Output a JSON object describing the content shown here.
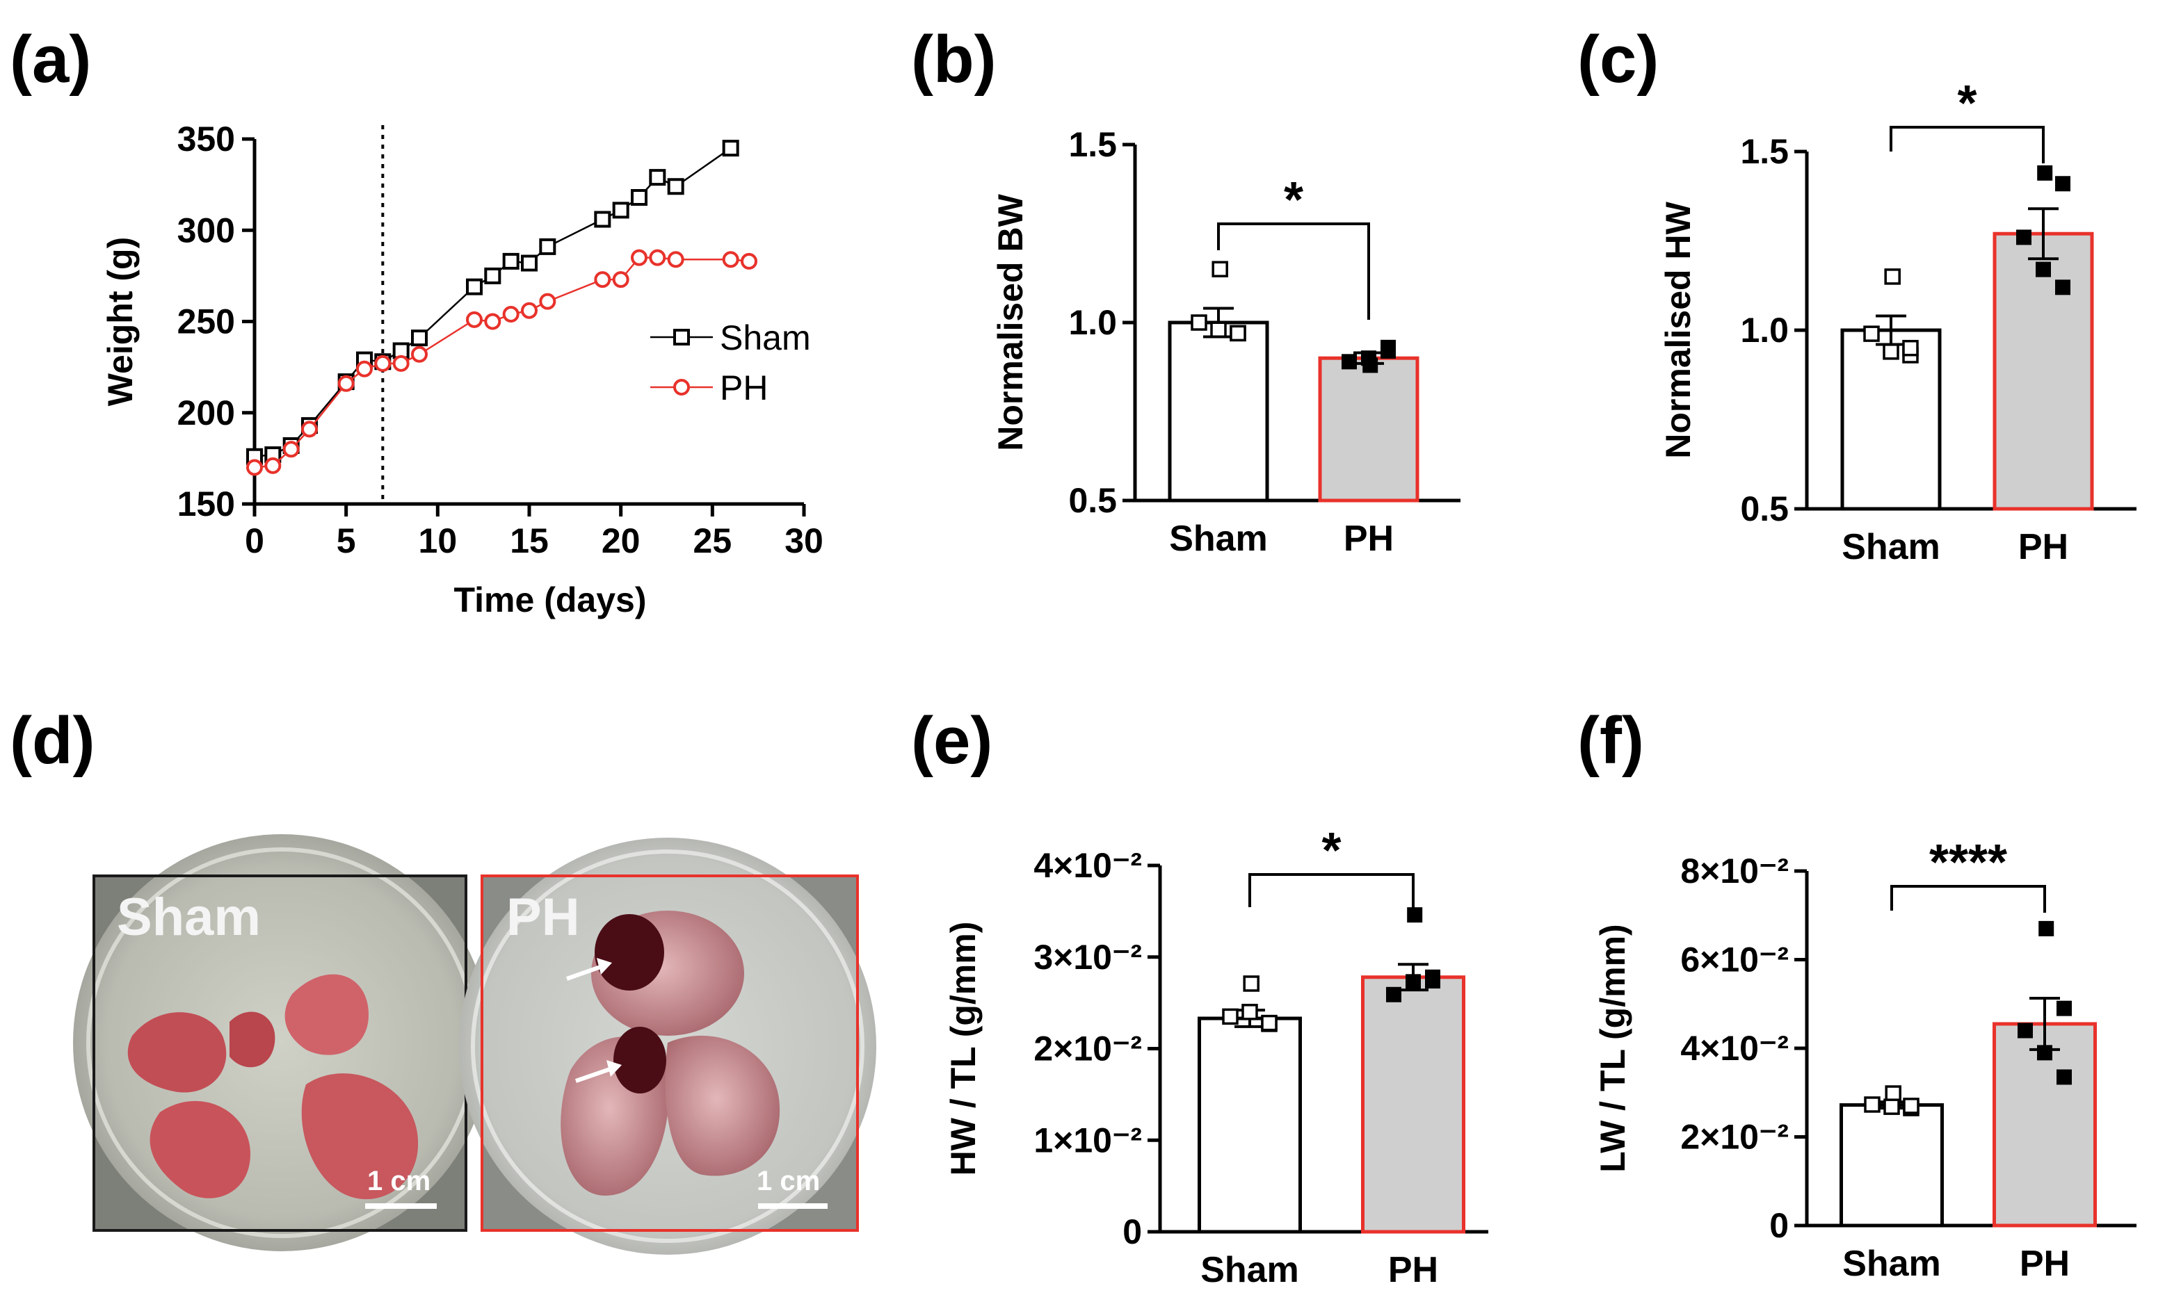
{
  "colors": {
    "sham": "#000000",
    "ph": "#e8322b",
    "bar_fill_ph": "#cfcfcf",
    "bar_fill_sham": "#ffffff"
  },
  "panel_labels": [
    "(a)",
    "(b)",
    "(c)",
    "(d)",
    "(e)",
    "(f)"
  ],
  "chart_data": [
    {
      "panel": "(a)",
      "type": "line",
      "xlabel": "Time (days)",
      "ylabel": "Weight (g)",
      "xlim": [
        0,
        30
      ],
      "ylim": [
        150,
        350
      ],
      "xticks": [
        "0",
        "5",
        "10",
        "15",
        "20",
        "25",
        "30"
      ],
      "yticks": [
        "150",
        "200",
        "250",
        "300",
        "350"
      ],
      "vline_x": 7,
      "series": [
        {
          "name": "Sham",
          "marker": "square",
          "x": [
            0,
            1,
            2,
            3,
            5,
            6,
            7,
            8,
            9,
            12,
            13,
            14,
            15,
            16,
            19,
            20,
            21,
            22,
            23,
            26
          ],
          "y": [
            176,
            177,
            182,
            193,
            217,
            229,
            228,
            234,
            241,
            269,
            275,
            283,
            282,
            291,
            306,
            311,
            318,
            329,
            324,
            345
          ]
        },
        {
          "name": "PH",
          "marker": "circle",
          "x": [
            0,
            1,
            2,
            3,
            5,
            6,
            7,
            8,
            9,
            12,
            13,
            14,
            15,
            16,
            19,
            20,
            21,
            22,
            23,
            26,
            27
          ],
          "y": [
            170,
            171,
            180,
            191,
            216,
            224,
            227,
            227,
            232,
            251,
            250,
            254,
            256,
            261,
            273,
            273,
            285,
            285,
            284,
            284,
            283
          ]
        }
      ],
      "legend": [
        "Sham",
        "PH"
      ],
      "legend_position": "center-right"
    },
    {
      "panel": "(b)",
      "type": "bar",
      "categories": [
        "Sham",
        "PH"
      ],
      "ylabel": "Normalised BW",
      "ylim": [
        0.5,
        1.5
      ],
      "yticks": [
        "0.5",
        "1.0",
        "1.5"
      ],
      "values": [
        1.0,
        0.9
      ],
      "sem": [
        0.04,
        0.015
      ],
      "points": [
        [
          1.15,
          0.97,
          1.0,
          0.98,
          0.97
        ],
        [
          0.88,
          0.92,
          0.89,
          0.9,
          0.93
        ]
      ],
      "significance": "*"
    },
    {
      "panel": "(c)",
      "type": "bar",
      "categories": [
        "Sham",
        "PH"
      ],
      "ylabel": "Normalised HW",
      "ylim": [
        0.5,
        1.5
      ],
      "yticks": [
        "0.5",
        "1.0",
        "1.5"
      ],
      "values": [
        1.0,
        1.27
      ],
      "sem": [
        0.04,
        0.07
      ],
      "points": [
        [
          1.15,
          0.93,
          0.99,
          0.94,
          0.95
        ],
        [
          1.44,
          1.41,
          1.26,
          1.17,
          1.12
        ]
      ],
      "significance": "*"
    },
    {
      "panel": "(e)",
      "type": "bar",
      "categories": [
        "Sham",
        "PH"
      ],
      "ylabel": "HW / TL (g/mm)",
      "ylim": [
        0,
        0.04
      ],
      "yticks": [
        "0",
        "1×10⁻²",
        "2×10⁻²",
        "3×10⁻²",
        "4×10⁻²"
      ],
      "values": [
        0.0233,
        0.0278
      ],
      "sem": [
        0.0009,
        0.0014
      ],
      "points": [
        [
          0.0271,
          0.0227,
          0.0235,
          0.024,
          0.0228
        ],
        [
          0.0346,
          0.0278,
          0.0259,
          0.0273,
          0.0274
        ]
      ],
      "significance": "*"
    },
    {
      "panel": "(f)",
      "type": "bar",
      "categories": [
        "Sham",
        "PH"
      ],
      "ylabel": "LW / TL (g/mm)",
      "ylim": [
        0,
        0.08
      ],
      "yticks": [
        "0",
        "2×10⁻²",
        "4×10⁻²",
        "6×10⁻²",
        "8×10⁻²"
      ],
      "values": [
        0.0272,
        0.0455
      ],
      "sem": [
        0.0007,
        0.0058
      ],
      "points": [
        [
          0.0298,
          0.0265,
          0.0273,
          0.0268,
          0.027
        ],
        [
          0.067,
          0.049,
          0.044,
          0.039,
          0.0335
        ]
      ],
      "significance": "****"
    }
  ],
  "photos": {
    "sham_label": "Sham",
    "ph_label": "PH",
    "scale_bar": "1 cm"
  }
}
